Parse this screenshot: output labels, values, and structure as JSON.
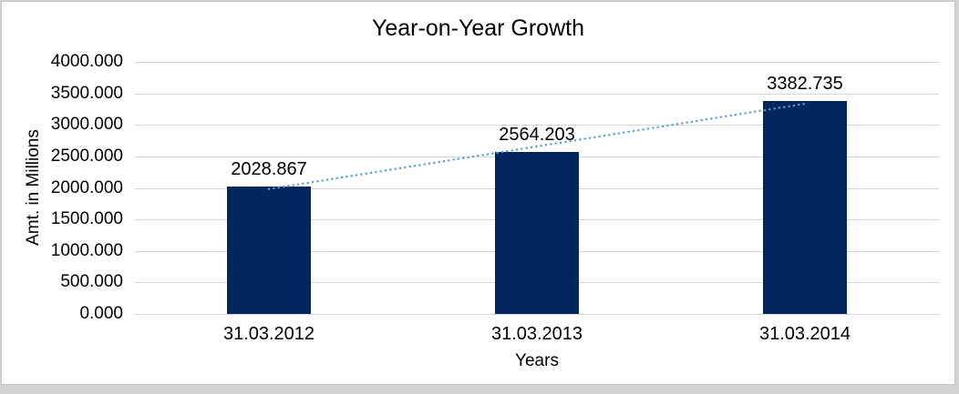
{
  "chart_data": {
    "type": "bar",
    "title": "Year-on-Year Growth",
    "xlabel": "Years",
    "ylabel": "Amt. in Millions",
    "categories": [
      "31.03.2012",
      "31.03.2013",
      "31.03.2014"
    ],
    "values": [
      2028.867,
      2564.203,
      3382.735
    ],
    "data_labels": [
      "2028.867",
      "2564.203",
      "3382.735"
    ],
    "ylim": [
      0,
      4000
    ],
    "ytick_step": 500,
    "ytick_labels": [
      "0.000",
      "500.000",
      "1000.000",
      "1500.000",
      "2000.000",
      "2500.000",
      "3000.000",
      "3500.000",
      "4000.000"
    ],
    "grid": true,
    "legend": "none",
    "bar_color": "#02265E",
    "trendline": {
      "type": "linear",
      "style": "dotted",
      "color": "#5B9BD5",
      "start_value": 1981.7,
      "end_value": 3335.5
    },
    "colors": {
      "gridline": "#d6d6d6",
      "text": "#000000",
      "frame_background": "#d3d3d3",
      "chart_background": "#ffffff"
    }
  }
}
